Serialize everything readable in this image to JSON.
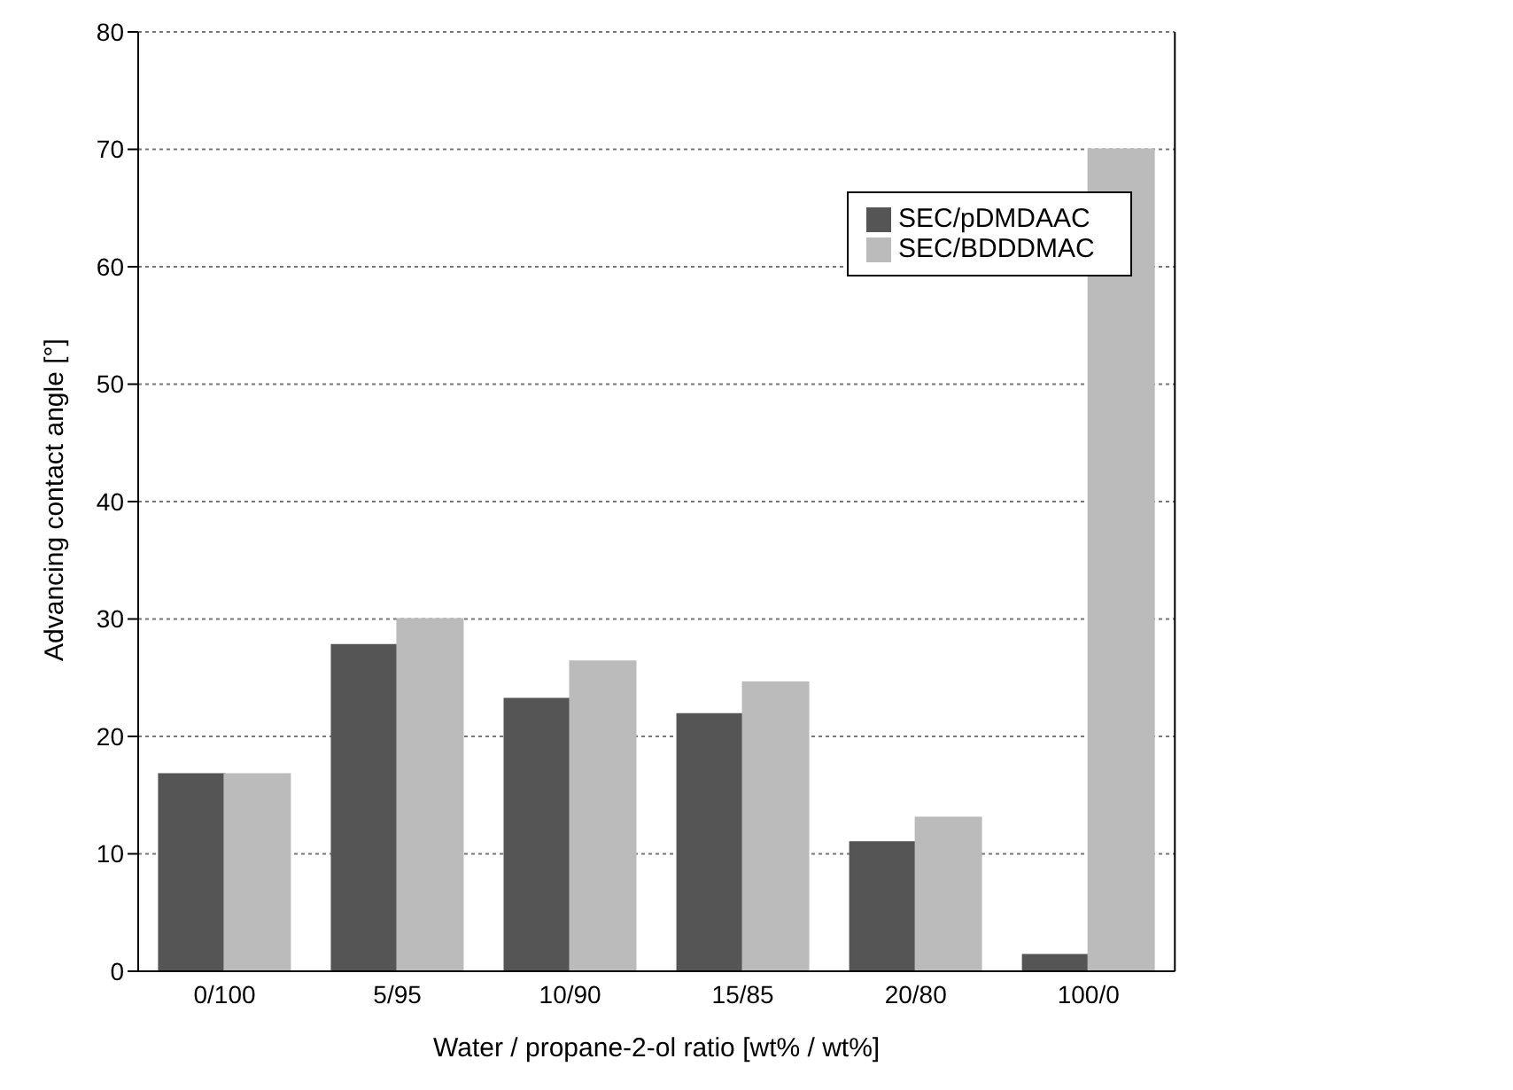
{
  "chart_data": {
    "type": "bar",
    "xlabel": "Water / propane-2-ol ratio [wt% / wt%]",
    "ylabel": "Advancing contact angle [°]",
    "categories": [
      "0/100",
      "5/95",
      "10/90",
      "15/85",
      "20/80",
      "100/0"
    ],
    "series": [
      {
        "name": "SEC/pDMDAAC",
        "color": "#555555",
        "values": [
          16.8,
          27.8,
          23.2,
          21.9,
          11.0,
          1.4
        ]
      },
      {
        "name": "SEC/BDDDMAC",
        "color": "#bbbbbb",
        "values": [
          16.8,
          30.0,
          26.4,
          24.6,
          13.1,
          70.0
        ]
      }
    ],
    "ylim": [
      0,
      80
    ],
    "yticks": [
      0,
      10,
      20,
      30,
      40,
      50,
      60,
      70,
      80
    ],
    "grid": "y",
    "legend": "top right"
  }
}
